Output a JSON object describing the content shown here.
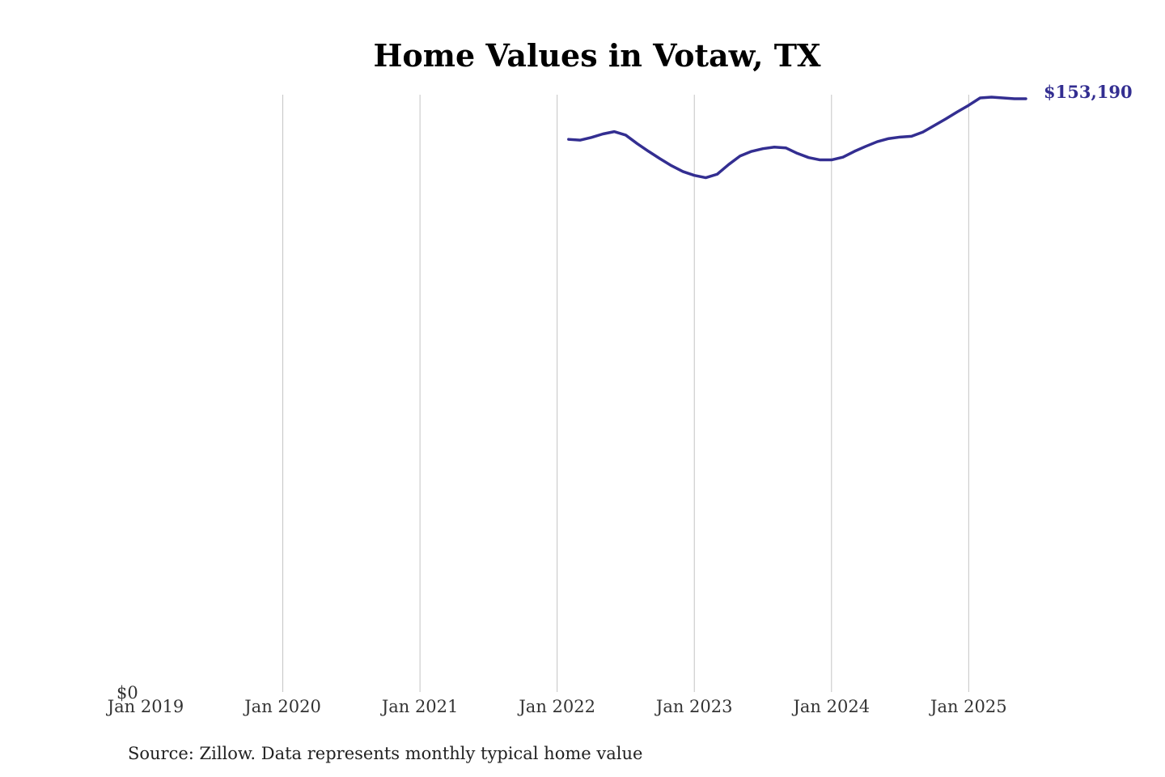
{
  "chart_data": {
    "type": "line",
    "title": "Home Values in Votaw, TX",
    "xlabel": "",
    "ylabel": "",
    "x_ticks": [
      "Jan 2019",
      "Jan 2020",
      "Jan 2021",
      "Jan 2022",
      "Jan 2023",
      "Jan 2024",
      "Jan 2025"
    ],
    "y_ticks": [
      "$0"
    ],
    "xlim": [
      "2019-01",
      "2025-06"
    ],
    "ylim": [
      0,
      153190
    ],
    "grid": "vertical",
    "legend": "none",
    "line_color": "#332e91",
    "series": [
      {
        "x": [
          "2022-02",
          "2022-03",
          "2022-04",
          "2022-05",
          "2022-06",
          "2022-07",
          "2022-08",
          "2022-09",
          "2022-10",
          "2022-11",
          "2022-12",
          "2023-01",
          "2023-02",
          "2023-03",
          "2023-04",
          "2023-05",
          "2023-06",
          "2023-07",
          "2023-08",
          "2023-09",
          "2023-10",
          "2023-11",
          "2023-12",
          "2024-01",
          "2024-02",
          "2024-03",
          "2024-04",
          "2024-05",
          "2024-06",
          "2024-07",
          "2024-08",
          "2024-09",
          "2024-10",
          "2024-11",
          "2024-12",
          "2025-01",
          "2025-02",
          "2025-03",
          "2025-04",
          "2025-05",
          "2025-06"
        ],
        "values": [
          142700,
          142500,
          143200,
          144100,
          144700,
          143800,
          141600,
          139600,
          137700,
          135900,
          134400,
          133400,
          132800,
          133700,
          136200,
          138400,
          139600,
          140300,
          140700,
          140500,
          139100,
          138000,
          137400,
          137400,
          138100,
          139600,
          140900,
          142100,
          142900,
          143300,
          143500,
          144600,
          146300,
          148000,
          149800,
          151500,
          153400,
          153600,
          153400,
          153200,
          153190
        ]
      }
    ],
    "end_label": "$153,190",
    "source_note": "Source: Zillow. Data represents monthly typical home value"
  }
}
